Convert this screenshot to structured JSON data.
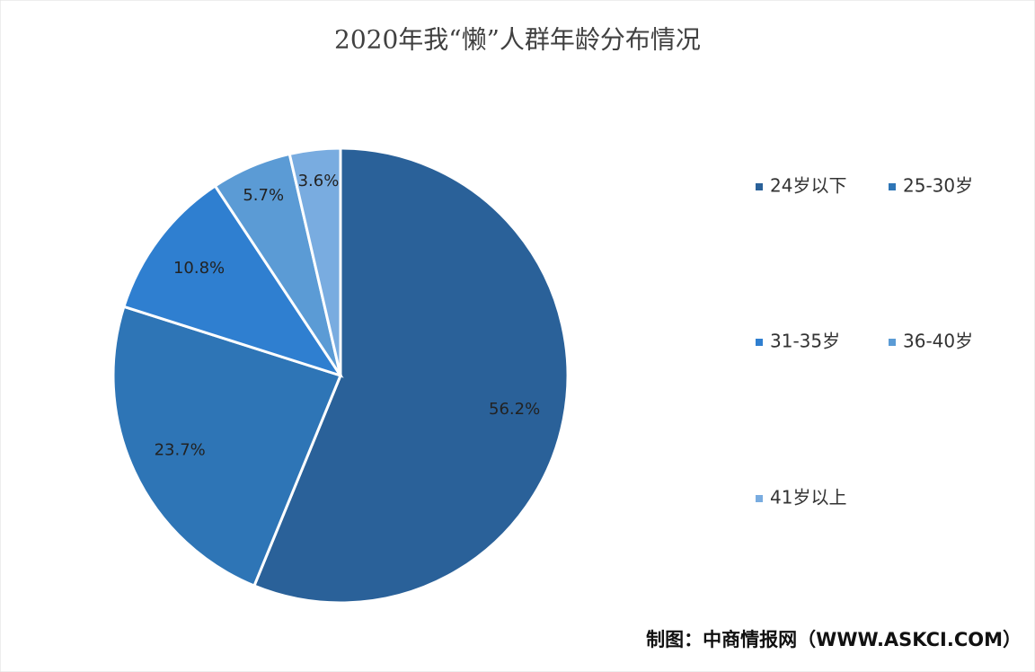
{
  "chart_data": {
    "type": "pie",
    "title": "2020年我“懒”人群年龄分布情况",
    "categories": [
      "24岁以下",
      "25-30岁",
      "31-35岁",
      "36-40岁",
      "41岁以上"
    ],
    "values": [
      56.2,
      23.7,
      10.8,
      5.7,
      3.6
    ],
    "value_labels": [
      "56.2%",
      "23.7%",
      "10.8%",
      "5.7%",
      "3.6%"
    ],
    "colors": [
      "#2a6199",
      "#2e75b6",
      "#2f7fd0",
      "#5b9bd5",
      "#79ace0"
    ],
    "legend": "right",
    "source": "制图：中商情报网（WWW.ASKCI.COM）"
  }
}
